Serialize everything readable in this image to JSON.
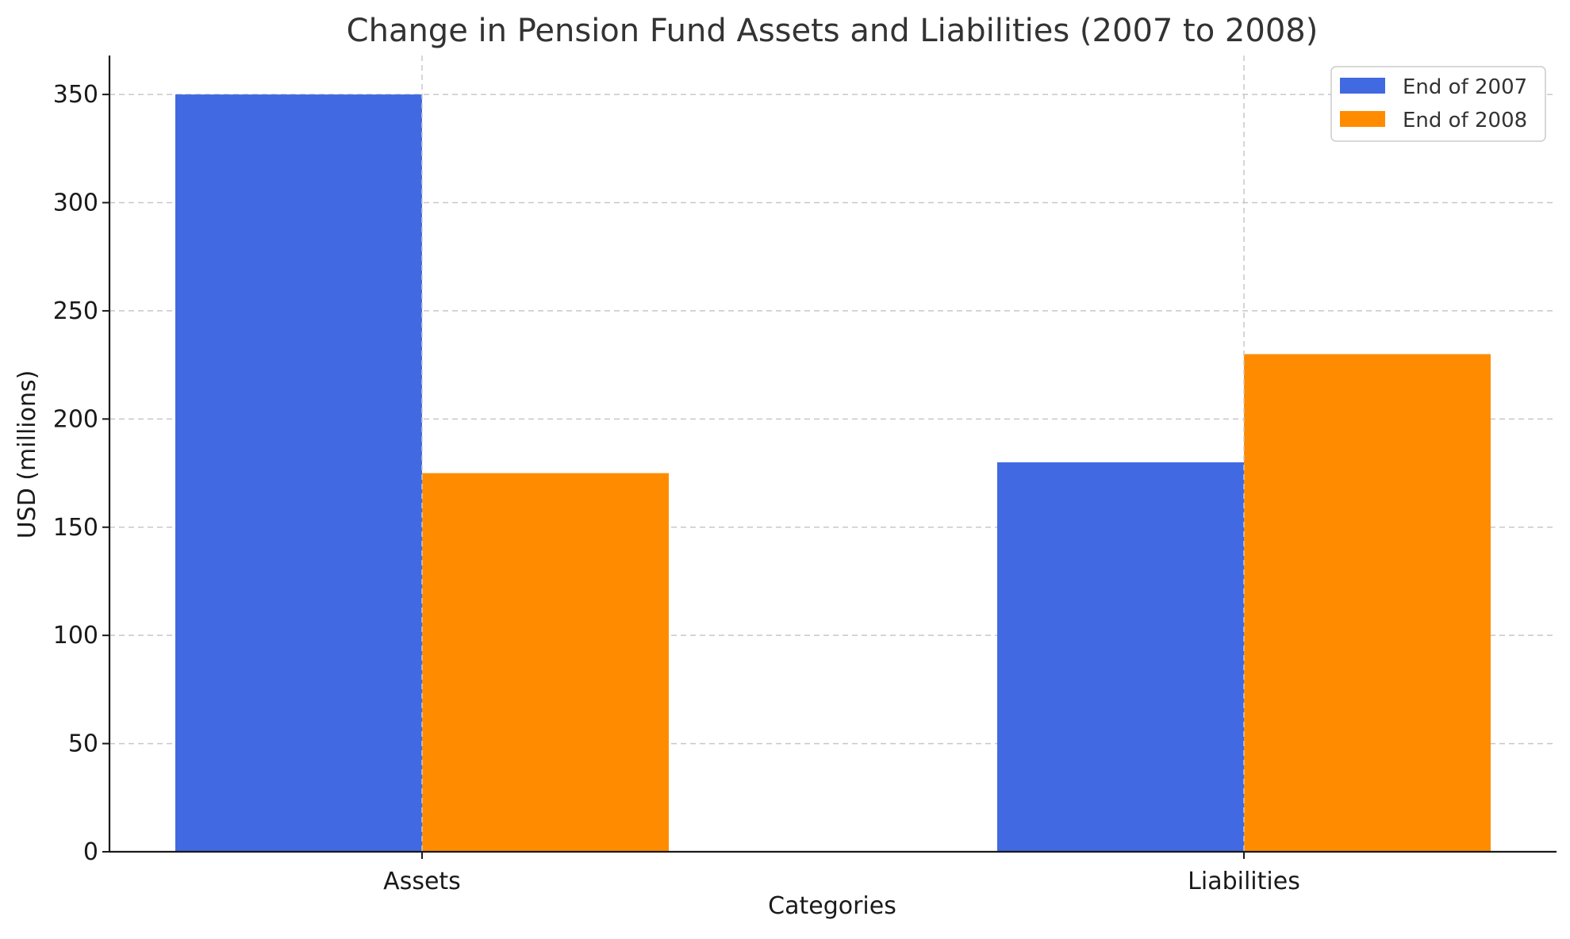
{
  "chart_data": {
    "type": "bar",
    "title": "Change in Pension Fund Assets and Liabilities (2007 to 2008)",
    "xlabel": "Categories",
    "ylabel": "USD (millions)",
    "categories": [
      "Assets",
      "Liabilities"
    ],
    "series": [
      {
        "name": "End of 2007",
        "values": [
          350,
          180
        ],
        "color": "#4169E1"
      },
      {
        "name": "End of 2008",
        "values": [
          175,
          230
        ],
        "color": "#FF8C00"
      }
    ],
    "ylim": [
      0,
      368
    ],
    "yticks": [
      0,
      50,
      100,
      150,
      200,
      250,
      300,
      350
    ],
    "grid": true,
    "legend_position": "top-right"
  }
}
